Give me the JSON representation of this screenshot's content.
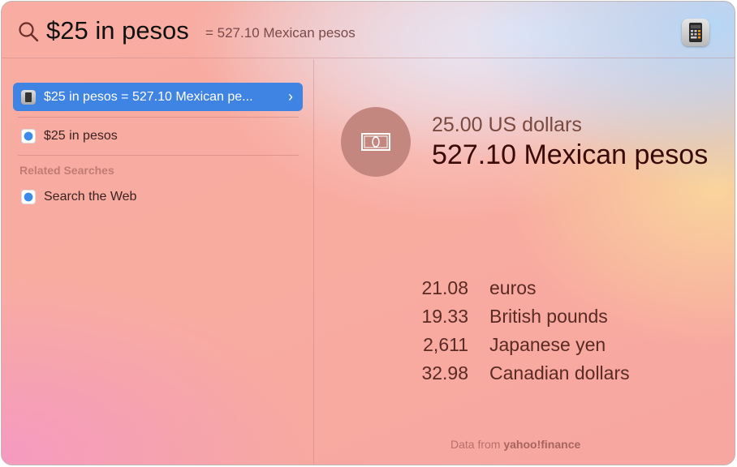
{
  "search": {
    "query": "$25 in pesos",
    "inline_result": "= 527.10 Mexican pesos",
    "icon": "search-icon",
    "app_icon": "calculator-icon"
  },
  "results": [
    {
      "label": "$25 in pesos = 527.10 Mexican pe...",
      "icon": "calculator-icon",
      "selected": true,
      "chevron": "›"
    },
    {
      "label": "$25 in pesos",
      "icon": "safari-icon",
      "selected": false
    }
  ],
  "related": {
    "heading": "Related Searches",
    "items": [
      {
        "label": "Search the Web",
        "icon": "safari-icon"
      }
    ]
  },
  "preview": {
    "icon": "banknote-icon",
    "from": "25.00 US dollars",
    "to": "527.10 Mexican pesos",
    "conversions": [
      {
        "value": "21.08",
        "currency": "euros"
      },
      {
        "value": "19.33",
        "currency": "British pounds"
      },
      {
        "value": "2,611",
        "currency": "Japanese yen"
      },
      {
        "value": "32.98",
        "currency": "Canadian dollars"
      }
    ],
    "footer_prefix": "Data from",
    "footer_brand": "yahoo!finance"
  },
  "colors": {
    "selection": "#3f83e3"
  }
}
